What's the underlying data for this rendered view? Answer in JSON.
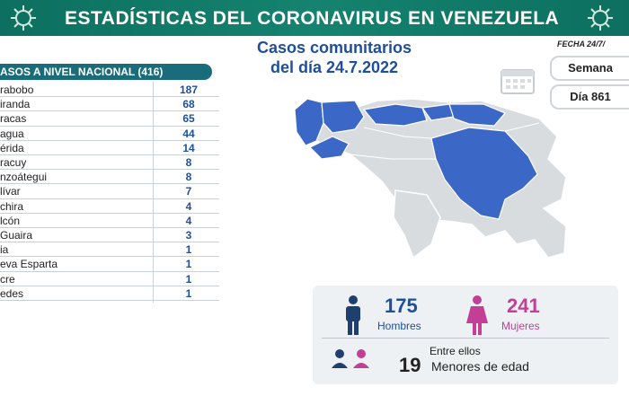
{
  "header": {
    "title": "ESTADÍSTICAS DEL CORONAVIRUS EN VENEZUELA",
    "subtitle_line1": "Casos comunitarios",
    "subtitle_line2": "del día 24.7.2022",
    "date_label": "FECHA 24/7/"
  },
  "colors": {
    "banner": "#14836f",
    "accent_blue": "#1f4f9a",
    "map_highlight": "#3b68c6",
    "map_base": "#d9dcdf",
    "women": "#c33f95",
    "men": "#1f3f6e"
  },
  "badges": {
    "week_label": "Semana",
    "day_label": "Día 861"
  },
  "cases_table": {
    "header": "ASOS A NIVEL NACIONAL  (416)",
    "rows": [
      {
        "name": "rabobo",
        "value": "187"
      },
      {
        "name": "iranda",
        "value": "68"
      },
      {
        "name": "racas",
        "value": "65"
      },
      {
        "name": "agua",
        "value": "44"
      },
      {
        "name": "érida",
        "value": "14"
      },
      {
        "name": "racuy",
        "value": "8"
      },
      {
        "name": "nzoátegui",
        "value": "8"
      },
      {
        "name": "lívar",
        "value": "7"
      },
      {
        "name": "chira",
        "value": "4"
      },
      {
        "name": "lcón",
        "value": "4"
      },
      {
        "name": "Guaira",
        "value": "3"
      },
      {
        "name": "ia",
        "value": "1"
      },
      {
        "name": "eva Esparta",
        "value": "1"
      },
      {
        "name": "cre",
        "value": "1"
      },
      {
        "name": "edes",
        "value": "1"
      }
    ]
  },
  "stats": {
    "men_count": "175",
    "men_label": "Hombres",
    "women_count": "241",
    "women_label": "Mujeres",
    "minors_intro": "Entre ellos",
    "minors_count": "19",
    "minors_label": "Menores de edad"
  }
}
